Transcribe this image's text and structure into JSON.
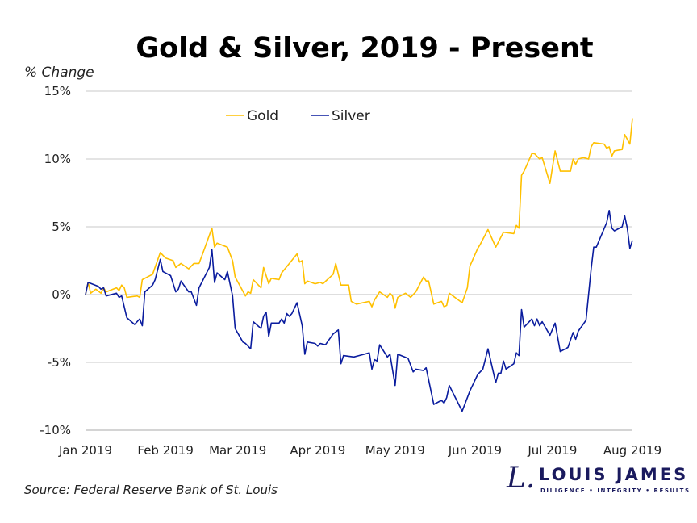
{
  "chart_data": {
    "type": "line",
    "title": "Gold & Silver, 2019 - Present",
    "ylabel": "% Change",
    "xlabel": "",
    "ylim": [
      -10,
      15
    ],
    "xlim": [
      "2019-01-01",
      "2019-08-01"
    ],
    "yticks": [
      "15%",
      "10%",
      "5%",
      "0%",
      "-5%",
      "-10%"
    ],
    "ytick_values": [
      15,
      10,
      5,
      0,
      -5,
      -10
    ],
    "xticks": [
      "Jan 2019",
      "Feb 2019",
      "Mar 2019",
      "Apr 2019",
      "May 2019",
      "Jun 2019",
      "Jul 2019",
      "Aug 2019"
    ],
    "xtick_dates": [
      "2019-01-01",
      "2019-02-01",
      "2019-03-01",
      "2019-04-01",
      "2019-05-01",
      "2019-06-01",
      "2019-07-01",
      "2019-08-01"
    ],
    "grid": true,
    "legend_placement": "top-center",
    "series": [
      {
        "name": "Gold",
        "color": "#FFC000",
        "points": [
          [
            "2019-01-01",
            0.0
          ],
          [
            "2019-01-02",
            0.9
          ],
          [
            "2019-01-03",
            0.1
          ],
          [
            "2019-01-05",
            0.4
          ],
          [
            "2019-01-07",
            0.1
          ],
          [
            "2019-01-08",
            0.5
          ],
          [
            "2019-01-09",
            0.2
          ],
          [
            "2019-01-13",
            0.5
          ],
          [
            "2019-01-14",
            0.3
          ],
          [
            "2019-01-15",
            0.7
          ],
          [
            "2019-01-16",
            0.5
          ],
          [
            "2019-01-17",
            -0.2
          ],
          [
            "2019-01-21",
            -0.1
          ],
          [
            "2019-01-22",
            -0.2
          ],
          [
            "2019-01-23",
            1.1
          ],
          [
            "2019-01-27",
            1.5
          ],
          [
            "2019-01-30",
            3.1
          ],
          [
            "2019-02-01",
            2.7
          ],
          [
            "2019-02-04",
            2.5
          ],
          [
            "2019-02-05",
            2.0
          ],
          [
            "2019-02-07",
            2.3
          ],
          [
            "2019-02-10",
            1.9
          ],
          [
            "2019-02-12",
            2.3
          ],
          [
            "2019-02-14",
            2.3
          ],
          [
            "2019-02-15",
            2.8
          ],
          [
            "2019-02-19",
            4.9
          ],
          [
            "2019-02-20",
            3.5
          ],
          [
            "2019-02-21",
            3.8
          ],
          [
            "2019-02-25",
            3.5
          ],
          [
            "2019-02-27",
            2.5
          ],
          [
            "2019-02-28",
            1.3
          ],
          [
            "2019-03-04",
            -0.1
          ],
          [
            "2019-03-05",
            0.2
          ],
          [
            "2019-03-06",
            0.1
          ],
          [
            "2019-03-07",
            1.1
          ],
          [
            "2019-03-10",
            0.5
          ],
          [
            "2019-03-11",
            2.0
          ],
          [
            "2019-03-13",
            0.8
          ],
          [
            "2019-03-14",
            1.2
          ],
          [
            "2019-03-17",
            1.1
          ],
          [
            "2019-03-18",
            1.6
          ],
          [
            "2019-03-21",
            2.3
          ],
          [
            "2019-03-24",
            3.0
          ],
          [
            "2019-03-25",
            2.4
          ],
          [
            "2019-03-26",
            2.5
          ],
          [
            "2019-03-27",
            0.8
          ],
          [
            "2019-03-28",
            1.0
          ],
          [
            "2019-03-31",
            0.8
          ],
          [
            "2019-04-02",
            0.9
          ],
          [
            "2019-04-03",
            0.8
          ],
          [
            "2019-04-07",
            1.5
          ],
          [
            "2019-04-08",
            2.3
          ],
          [
            "2019-04-10",
            0.7
          ],
          [
            "2019-04-13",
            0.7
          ],
          [
            "2019-04-14",
            -0.5
          ],
          [
            "2019-04-16",
            -0.7
          ],
          [
            "2019-04-21",
            -0.5
          ],
          [
            "2019-04-22",
            -0.9
          ],
          [
            "2019-04-23",
            -0.4
          ],
          [
            "2019-04-25",
            0.2
          ],
          [
            "2019-04-28",
            -0.2
          ],
          [
            "2019-04-29",
            0.1
          ],
          [
            "2019-04-30",
            -0.1
          ],
          [
            "2019-05-01",
            -1.0
          ],
          [
            "2019-05-02",
            -0.2
          ],
          [
            "2019-05-05",
            0.1
          ],
          [
            "2019-05-07",
            -0.2
          ],
          [
            "2019-05-09",
            0.2
          ],
          [
            "2019-05-12",
            1.3
          ],
          [
            "2019-05-13",
            1.0
          ],
          [
            "2019-05-14",
            1.0
          ],
          [
            "2019-05-16",
            -0.7
          ],
          [
            "2019-05-19",
            -0.5
          ],
          [
            "2019-05-20",
            -0.9
          ],
          [
            "2019-05-21",
            -0.8
          ],
          [
            "2019-05-22",
            0.1
          ],
          [
            "2019-05-27",
            -0.6
          ],
          [
            "2019-05-29",
            0.5
          ],
          [
            "2019-05-30",
            2.1
          ],
          [
            "2019-06-02",
            3.4
          ],
          [
            "2019-06-03",
            3.7
          ],
          [
            "2019-06-06",
            4.8
          ],
          [
            "2019-06-09",
            3.5
          ],
          [
            "2019-06-12",
            4.6
          ],
          [
            "2019-06-16",
            4.5
          ],
          [
            "2019-06-17",
            5.1
          ],
          [
            "2019-06-18",
            4.9
          ],
          [
            "2019-06-19",
            8.8
          ],
          [
            "2019-06-20",
            9.1
          ],
          [
            "2019-06-23",
            10.4
          ],
          [
            "2019-06-24",
            10.4
          ],
          [
            "2019-06-26",
            10.0
          ],
          [
            "2019-06-27",
            10.1
          ],
          [
            "2019-06-30",
            8.2
          ],
          [
            "2019-07-02",
            10.6
          ],
          [
            "2019-07-04",
            9.1
          ],
          [
            "2019-07-08",
            9.1
          ],
          [
            "2019-07-09",
            10.0
          ],
          [
            "2019-07-10",
            9.6
          ],
          [
            "2019-07-11",
            10.0
          ],
          [
            "2019-07-13",
            10.1
          ],
          [
            "2019-07-15",
            10.0
          ],
          [
            "2019-07-16",
            10.9
          ],
          [
            "2019-07-17",
            11.2
          ],
          [
            "2019-07-21",
            11.1
          ],
          [
            "2019-07-22",
            10.8
          ],
          [
            "2019-07-23",
            10.9
          ],
          [
            "2019-07-24",
            10.2
          ],
          [
            "2019-07-25",
            10.6
          ],
          [
            "2019-07-28",
            10.7
          ],
          [
            "2019-07-29",
            11.8
          ],
          [
            "2019-07-31",
            11.1
          ],
          [
            "2019-08-01",
            13.0
          ]
        ]
      },
      {
        "name": "Silver",
        "color": "#0A1C9E",
        "points": [
          [
            "2019-01-01",
            0.0
          ],
          [
            "2019-01-02",
            0.9
          ],
          [
            "2019-01-06",
            0.6
          ],
          [
            "2019-01-07",
            0.4
          ],
          [
            "2019-01-08",
            0.5
          ],
          [
            "2019-01-09",
            -0.1
          ],
          [
            "2019-01-13",
            0.1
          ],
          [
            "2019-01-14",
            -0.2
          ],
          [
            "2019-01-15",
            -0.1
          ],
          [
            "2019-01-17",
            -1.7
          ],
          [
            "2019-01-20",
            -2.2
          ],
          [
            "2019-01-22",
            -1.8
          ],
          [
            "2019-01-23",
            -2.3
          ],
          [
            "2019-01-24",
            0.2
          ],
          [
            "2019-01-27",
            0.7
          ],
          [
            "2019-01-28",
            1.1
          ],
          [
            "2019-01-30",
            2.6
          ],
          [
            "2019-01-31",
            1.7
          ],
          [
            "2019-02-03",
            1.4
          ],
          [
            "2019-02-05",
            0.2
          ],
          [
            "2019-02-06",
            0.4
          ],
          [
            "2019-02-07",
            1.0
          ],
          [
            "2019-02-10",
            0.2
          ],
          [
            "2019-02-11",
            0.2
          ],
          [
            "2019-02-13",
            -0.8
          ],
          [
            "2019-02-14",
            0.5
          ],
          [
            "2019-02-18",
            2.0
          ],
          [
            "2019-02-19",
            3.3
          ],
          [
            "2019-02-20",
            0.9
          ],
          [
            "2019-02-21",
            1.6
          ],
          [
            "2019-02-24",
            1.1
          ],
          [
            "2019-02-25",
            1.7
          ],
          [
            "2019-02-27",
            -0.1
          ],
          [
            "2019-02-28",
            -2.5
          ],
          [
            "2019-03-03",
            -3.5
          ],
          [
            "2019-03-04",
            -3.6
          ],
          [
            "2019-03-06",
            -4.0
          ],
          [
            "2019-03-07",
            -2.0
          ],
          [
            "2019-03-10",
            -2.5
          ],
          [
            "2019-03-11",
            -1.6
          ],
          [
            "2019-03-12",
            -1.3
          ],
          [
            "2019-03-13",
            -3.1
          ],
          [
            "2019-03-14",
            -2.1
          ],
          [
            "2019-03-17",
            -2.1
          ],
          [
            "2019-03-18",
            -1.8
          ],
          [
            "2019-03-19",
            -2.1
          ],
          [
            "2019-03-20",
            -1.4
          ],
          [
            "2019-03-21",
            -1.6
          ],
          [
            "2019-03-22",
            -1.4
          ],
          [
            "2019-03-24",
            -0.6
          ],
          [
            "2019-03-26",
            -2.3
          ],
          [
            "2019-03-27",
            -4.4
          ],
          [
            "2019-03-28",
            -3.5
          ],
          [
            "2019-03-31",
            -3.6
          ],
          [
            "2019-04-01",
            -3.8
          ],
          [
            "2019-04-02",
            -3.6
          ],
          [
            "2019-04-04",
            -3.7
          ],
          [
            "2019-04-07",
            -2.9
          ],
          [
            "2019-04-09",
            -2.6
          ],
          [
            "2019-04-10",
            -5.1
          ],
          [
            "2019-04-11",
            -4.5
          ],
          [
            "2019-04-15",
            -4.6
          ],
          [
            "2019-04-17",
            -4.5
          ],
          [
            "2019-04-21",
            -4.3
          ],
          [
            "2019-04-22",
            -5.5
          ],
          [
            "2019-04-23",
            -4.8
          ],
          [
            "2019-04-24",
            -4.9
          ],
          [
            "2019-04-25",
            -3.7
          ],
          [
            "2019-04-28",
            -4.6
          ],
          [
            "2019-04-29",
            -4.4
          ],
          [
            "2019-05-01",
            -6.7
          ],
          [
            "2019-05-02",
            -4.4
          ],
          [
            "2019-05-06",
            -4.7
          ],
          [
            "2019-05-08",
            -5.7
          ],
          [
            "2019-05-09",
            -5.5
          ],
          [
            "2019-05-12",
            -5.6
          ],
          [
            "2019-05-13",
            -5.4
          ],
          [
            "2019-05-16",
            -8.1
          ],
          [
            "2019-05-19",
            -7.8
          ],
          [
            "2019-05-20",
            -8.0
          ],
          [
            "2019-05-21",
            -7.6
          ],
          [
            "2019-05-22",
            -6.7
          ],
          [
            "2019-05-27",
            -8.6
          ],
          [
            "2019-05-30",
            -7.1
          ],
          [
            "2019-06-02",
            -5.9
          ],
          [
            "2019-06-04",
            -5.5
          ],
          [
            "2019-06-06",
            -4.0
          ],
          [
            "2019-06-09",
            -6.5
          ],
          [
            "2019-06-10",
            -5.8
          ],
          [
            "2019-06-11",
            -5.8
          ],
          [
            "2019-06-12",
            -4.9
          ],
          [
            "2019-06-13",
            -5.5
          ],
          [
            "2019-06-16",
            -5.1
          ],
          [
            "2019-06-17",
            -4.3
          ],
          [
            "2019-06-18",
            -4.5
          ],
          [
            "2019-06-19",
            -1.1
          ],
          [
            "2019-06-20",
            -2.4
          ],
          [
            "2019-06-23",
            -1.8
          ],
          [
            "2019-06-24",
            -2.3
          ],
          [
            "2019-06-25",
            -1.8
          ],
          [
            "2019-06-26",
            -2.3
          ],
          [
            "2019-06-27",
            -2.0
          ],
          [
            "2019-06-30",
            -3.0
          ],
          [
            "2019-07-02",
            -2.1
          ],
          [
            "2019-07-04",
            -4.2
          ],
          [
            "2019-07-07",
            -3.9
          ],
          [
            "2019-07-09",
            -2.8
          ],
          [
            "2019-07-10",
            -3.3
          ],
          [
            "2019-07-11",
            -2.7
          ],
          [
            "2019-07-14",
            -1.9
          ],
          [
            "2019-07-16",
            1.9
          ],
          [
            "2019-07-17",
            3.5
          ],
          [
            "2019-07-18",
            3.5
          ],
          [
            "2019-07-22",
            5.3
          ],
          [
            "2019-07-23",
            6.2
          ],
          [
            "2019-07-24",
            4.9
          ],
          [
            "2019-07-25",
            4.7
          ],
          [
            "2019-07-28",
            5.0
          ],
          [
            "2019-07-29",
            5.8
          ],
          [
            "2019-07-30",
            4.9
          ],
          [
            "2019-07-31",
            3.4
          ],
          [
            "2019-08-01",
            4.0
          ]
        ]
      }
    ]
  },
  "source": "Source: Federal Reserve Bank of St. Louis",
  "logo": {
    "mark": "L.",
    "name": "LOUIS JAMES",
    "tagline": "DILIGENCE  •  INTEGRITY  •  RESULTS",
    "color": "#1A1A5E"
  }
}
